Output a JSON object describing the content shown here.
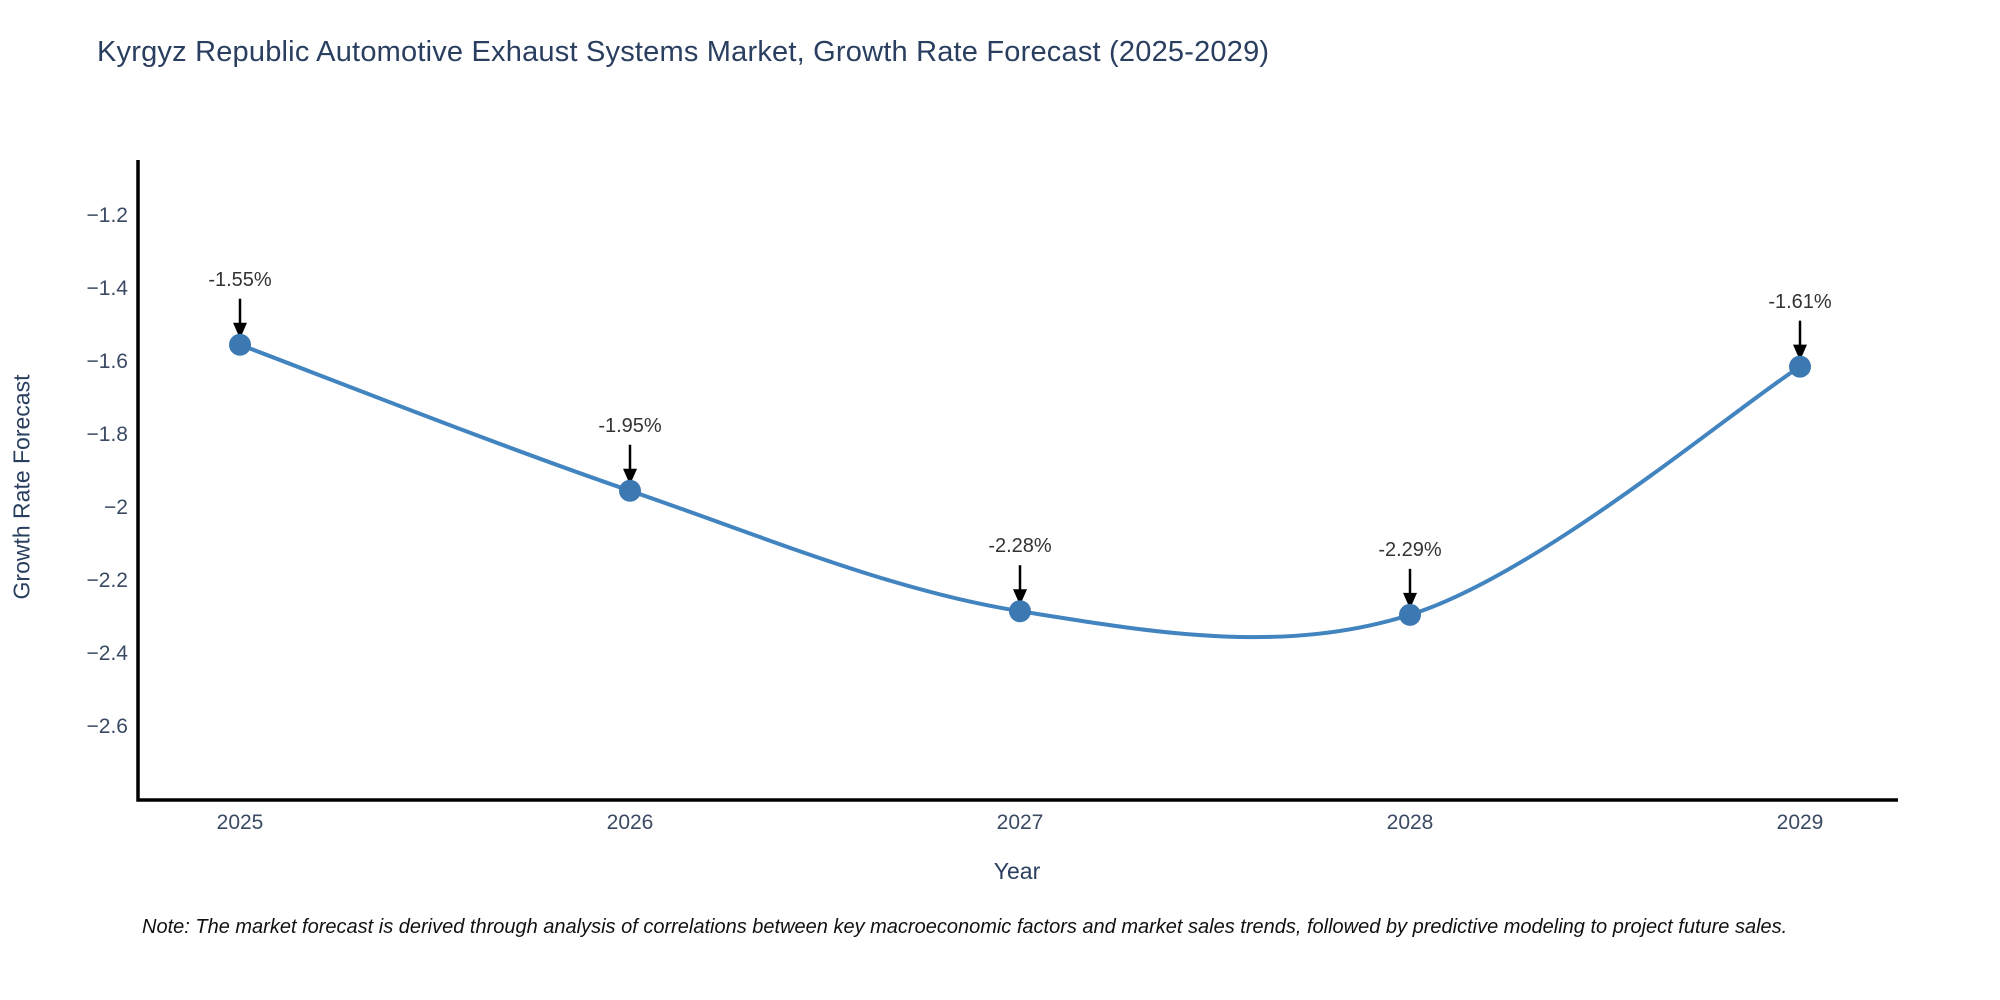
{
  "chart_data": {
    "type": "line",
    "line_shape": "spline",
    "title": "Kyrgyz Republic Automotive Exhaust Systems Market, Growth Rate Forecast (2025-2029)",
    "xlabel": "Year",
    "ylabel": "Growth Rate Forecast",
    "categories": [
      "2025",
      "2026",
      "2027",
      "2028",
      "2029"
    ],
    "series": [
      {
        "name": "Growth Rate Forecast",
        "values": [
          -1.55,
          -1.95,
          -2.28,
          -2.29,
          -1.61
        ]
      }
    ],
    "values": [
      -1.55,
      -1.95,
      -2.28,
      -2.29,
      -1.61
    ],
    "point_labels": [
      "-1.55%",
      "-1.95%",
      "-2.28%",
      "-2.29%",
      "-1.61%"
    ],
    "unit": "%",
    "ytick_labels": [
      "−1.2",
      "−1.4",
      "−1.6",
      "−1.8",
      "−2",
      "−2.2",
      "−2.4",
      "−2.6"
    ],
    "ylim": [
      -2.8,
      -1.04
    ],
    "grid": false,
    "legend": "none",
    "marker_style": "circle",
    "annotation_arrows": true,
    "note": "Note: The market forecast is derived through analysis of correlations between key macroeconomic factors and market sales trends, followed by predictive modeling to project future sales.",
    "colors": {
      "line_color": "#4284bf",
      "marker_color": "#3c78b2",
      "arrow_color": "#000000",
      "axis_color": "#000000",
      "title_color": "#2a3f5f",
      "tick_color": "#3b4a63",
      "anno_color": "#333333",
      "note_color": "#111111",
      "background": "#ffffff"
    }
  }
}
